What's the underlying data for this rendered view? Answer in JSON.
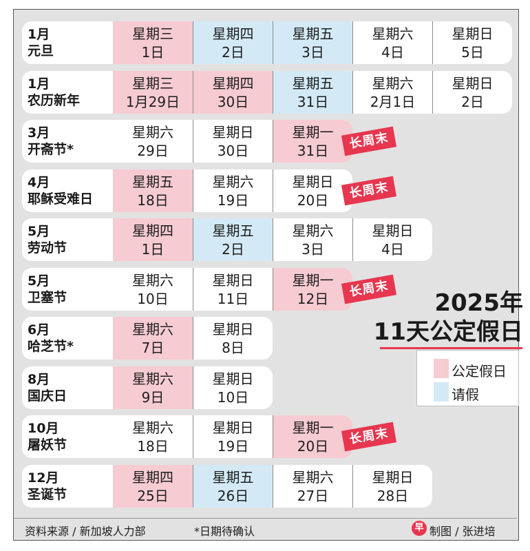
{
  "title": {
    "year": "2025年",
    "subtitle": "11天公定假日"
  },
  "legend": [
    {
      "label": "公定假日",
      "color": "#f6cbd2"
    },
    {
      "label": "请假",
      "color": "#d3eaf6"
    }
  ],
  "long_weekend_label": "长周末",
  "holidays": [
    {
      "month": "1月",
      "name": "元旦",
      "days": [
        {
          "weekday": "星期三",
          "date": "1日",
          "status": "holiday"
        },
        {
          "weekday": "星期四",
          "date": "2日",
          "status": "leave"
        },
        {
          "weekday": "星期五",
          "date": "3日",
          "status": "leave"
        },
        {
          "weekday": "星期六",
          "date": "4日",
          "status": "none"
        },
        {
          "weekday": "星期日",
          "date": "5日",
          "status": "none"
        }
      ],
      "long_weekend": false
    },
    {
      "month": "1月",
      "name": "农历新年",
      "days": [
        {
          "weekday": "星期三",
          "date": "1月29日",
          "status": "holiday"
        },
        {
          "weekday": "星期四",
          "date": "30日",
          "status": "holiday"
        },
        {
          "weekday": "星期五",
          "date": "31日",
          "status": "leave"
        },
        {
          "weekday": "星期六",
          "date": "2月1日",
          "status": "none"
        },
        {
          "weekday": "星期日",
          "date": "2日",
          "status": "none"
        }
      ],
      "long_weekend": false
    },
    {
      "month": "3月",
      "name": "开斋节*",
      "days": [
        {
          "weekday": "星期六",
          "date": "29日",
          "status": "none"
        },
        {
          "weekday": "星期日",
          "date": "30日",
          "status": "none"
        },
        {
          "weekday": "星期一",
          "date": "31日",
          "status": "holiday"
        }
      ],
      "long_weekend": true
    },
    {
      "month": "4月",
      "name": "耶稣受难日",
      "days": [
        {
          "weekday": "星期五",
          "date": "18日",
          "status": "holiday"
        },
        {
          "weekday": "星期六",
          "date": "19日",
          "status": "none"
        },
        {
          "weekday": "星期日",
          "date": "20日",
          "status": "none"
        }
      ],
      "long_weekend": true
    },
    {
      "month": "5月",
      "name": "劳动节",
      "days": [
        {
          "weekday": "星期四",
          "date": "1日",
          "status": "holiday"
        },
        {
          "weekday": "星期五",
          "date": "2日",
          "status": "leave"
        },
        {
          "weekday": "星期六",
          "date": "3日",
          "status": "none"
        },
        {
          "weekday": "星期日",
          "date": "4日",
          "status": "none"
        }
      ],
      "long_weekend": false
    },
    {
      "month": "5月",
      "name": "卫塞节",
      "days": [
        {
          "weekday": "星期六",
          "date": "10日",
          "status": "none"
        },
        {
          "weekday": "星期日",
          "date": "11日",
          "status": "none"
        },
        {
          "weekday": "星期一",
          "date": "12日",
          "status": "holiday"
        }
      ],
      "long_weekend": true
    },
    {
      "month": "6月",
      "name": "哈芝节*",
      "days": [
        {
          "weekday": "星期六",
          "date": "7日",
          "status": "holiday"
        },
        {
          "weekday": "星期日",
          "date": "8日",
          "status": "none"
        }
      ],
      "long_weekend": false
    },
    {
      "month": "8月",
      "name": "国庆日",
      "days": [
        {
          "weekday": "星期六",
          "date": "9日",
          "status": "holiday"
        },
        {
          "weekday": "星期日",
          "date": "10日",
          "status": "none"
        }
      ],
      "long_weekend": false
    },
    {
      "month": "10月",
      "name": "屠妖节",
      "days": [
        {
          "weekday": "星期六",
          "date": "18日",
          "status": "none"
        },
        {
          "weekday": "星期日",
          "date": "19日",
          "status": "none"
        },
        {
          "weekday": "星期一",
          "date": "20日",
          "status": "holiday"
        }
      ],
      "long_weekend": true
    },
    {
      "month": "12月",
      "name": "圣诞节",
      "days": [
        {
          "weekday": "星期四",
          "date": "25日",
          "status": "holiday"
        },
        {
          "weekday": "星期五",
          "date": "26日",
          "status": "leave"
        },
        {
          "weekday": "星期六",
          "date": "27日",
          "status": "none"
        },
        {
          "weekday": "星期日",
          "date": "28日",
          "status": "none"
        }
      ],
      "long_weekend": false
    }
  ],
  "footer": {
    "source": "资料来源 / 新加坡人力部",
    "note": "*日期待确认",
    "logo": "早",
    "credit": "制图 / 张进培"
  }
}
